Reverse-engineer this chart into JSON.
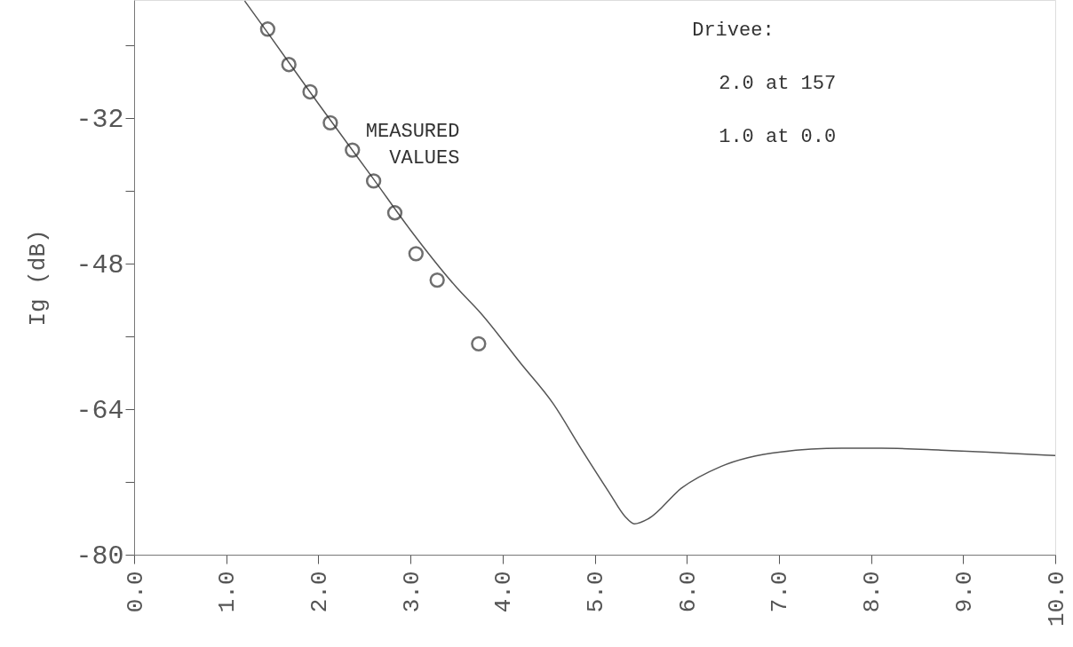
{
  "chart_data": {
    "type": "line",
    "xlabel": null,
    "ylabel": "Ig (dB)",
    "xlim": [
      0,
      10
    ],
    "ylim": [
      -80,
      -19
    ],
    "xticks": [
      {
        "value": 0,
        "label": "0.0"
      },
      {
        "value": 1,
        "label": "1.0"
      },
      {
        "value": 2,
        "label": "2.0"
      },
      {
        "value": 3,
        "label": "3.0"
      },
      {
        "value": 4,
        "label": "4.0"
      },
      {
        "value": 5,
        "label": "5.0"
      },
      {
        "value": 6,
        "label": "6.0"
      },
      {
        "value": 7,
        "label": "7.0"
      },
      {
        "value": 8,
        "label": "8.0"
      },
      {
        "value": 9,
        "label": "9.0"
      },
      {
        "value": 10,
        "label": "10.0"
      }
    ],
    "yticks": [
      -80,
      {
        "value": -72,
        "label": null
      },
      -64,
      {
        "value": -56,
        "label": null
      },
      -48,
      {
        "value": -40,
        "label": null
      },
      -32,
      {
        "value": -24,
        "label": null
      }
    ],
    "grid": false,
    "legend": false,
    "series": [
      {
        "color": "#555555",
        "line_style": "solid",
        "marker": "none",
        "x": [
          1.2,
          1.45,
          2.0,
          2.6,
          3.0,
          3.5,
          3.76,
          4.2,
          4.55,
          4.85,
          5.16,
          5.33,
          5.43,
          5.59,
          5.94,
          6.37,
          7.02,
          7.68,
          8.11,
          8.76,
          9.41,
          10.0
        ],
        "values": [
          -19.1,
          -22.6,
          -30.4,
          -38.7,
          -44.3,
          -50.6,
          -53.4,
          -59.0,
          -63.4,
          -68.3,
          -73.2,
          -75.8,
          -76.6,
          -76.0,
          -72.7,
          -70.3,
          -68.7,
          -68.3,
          -68.3,
          -68.5,
          -68.8,
          -69.1
        ]
      },
      {
        "type": "scatter",
        "name": "MEASURED VALUES",
        "color": "#333333",
        "marker": "circle",
        "x": [
          1.45,
          1.68,
          1.91,
          2.13,
          2.37,
          2.6,
          2.83,
          3.06,
          3.29,
          3.74
        ],
        "values": [
          -22.2,
          -26.1,
          -29.1,
          -32.5,
          -35.5,
          -38.9,
          -42.4,
          -46.9,
          -49.8,
          -56.8
        ]
      }
    ],
    "annotations": [
      "Drivee:",
      "2.0 at 157",
      "1.0 at 0.0"
    ]
  }
}
